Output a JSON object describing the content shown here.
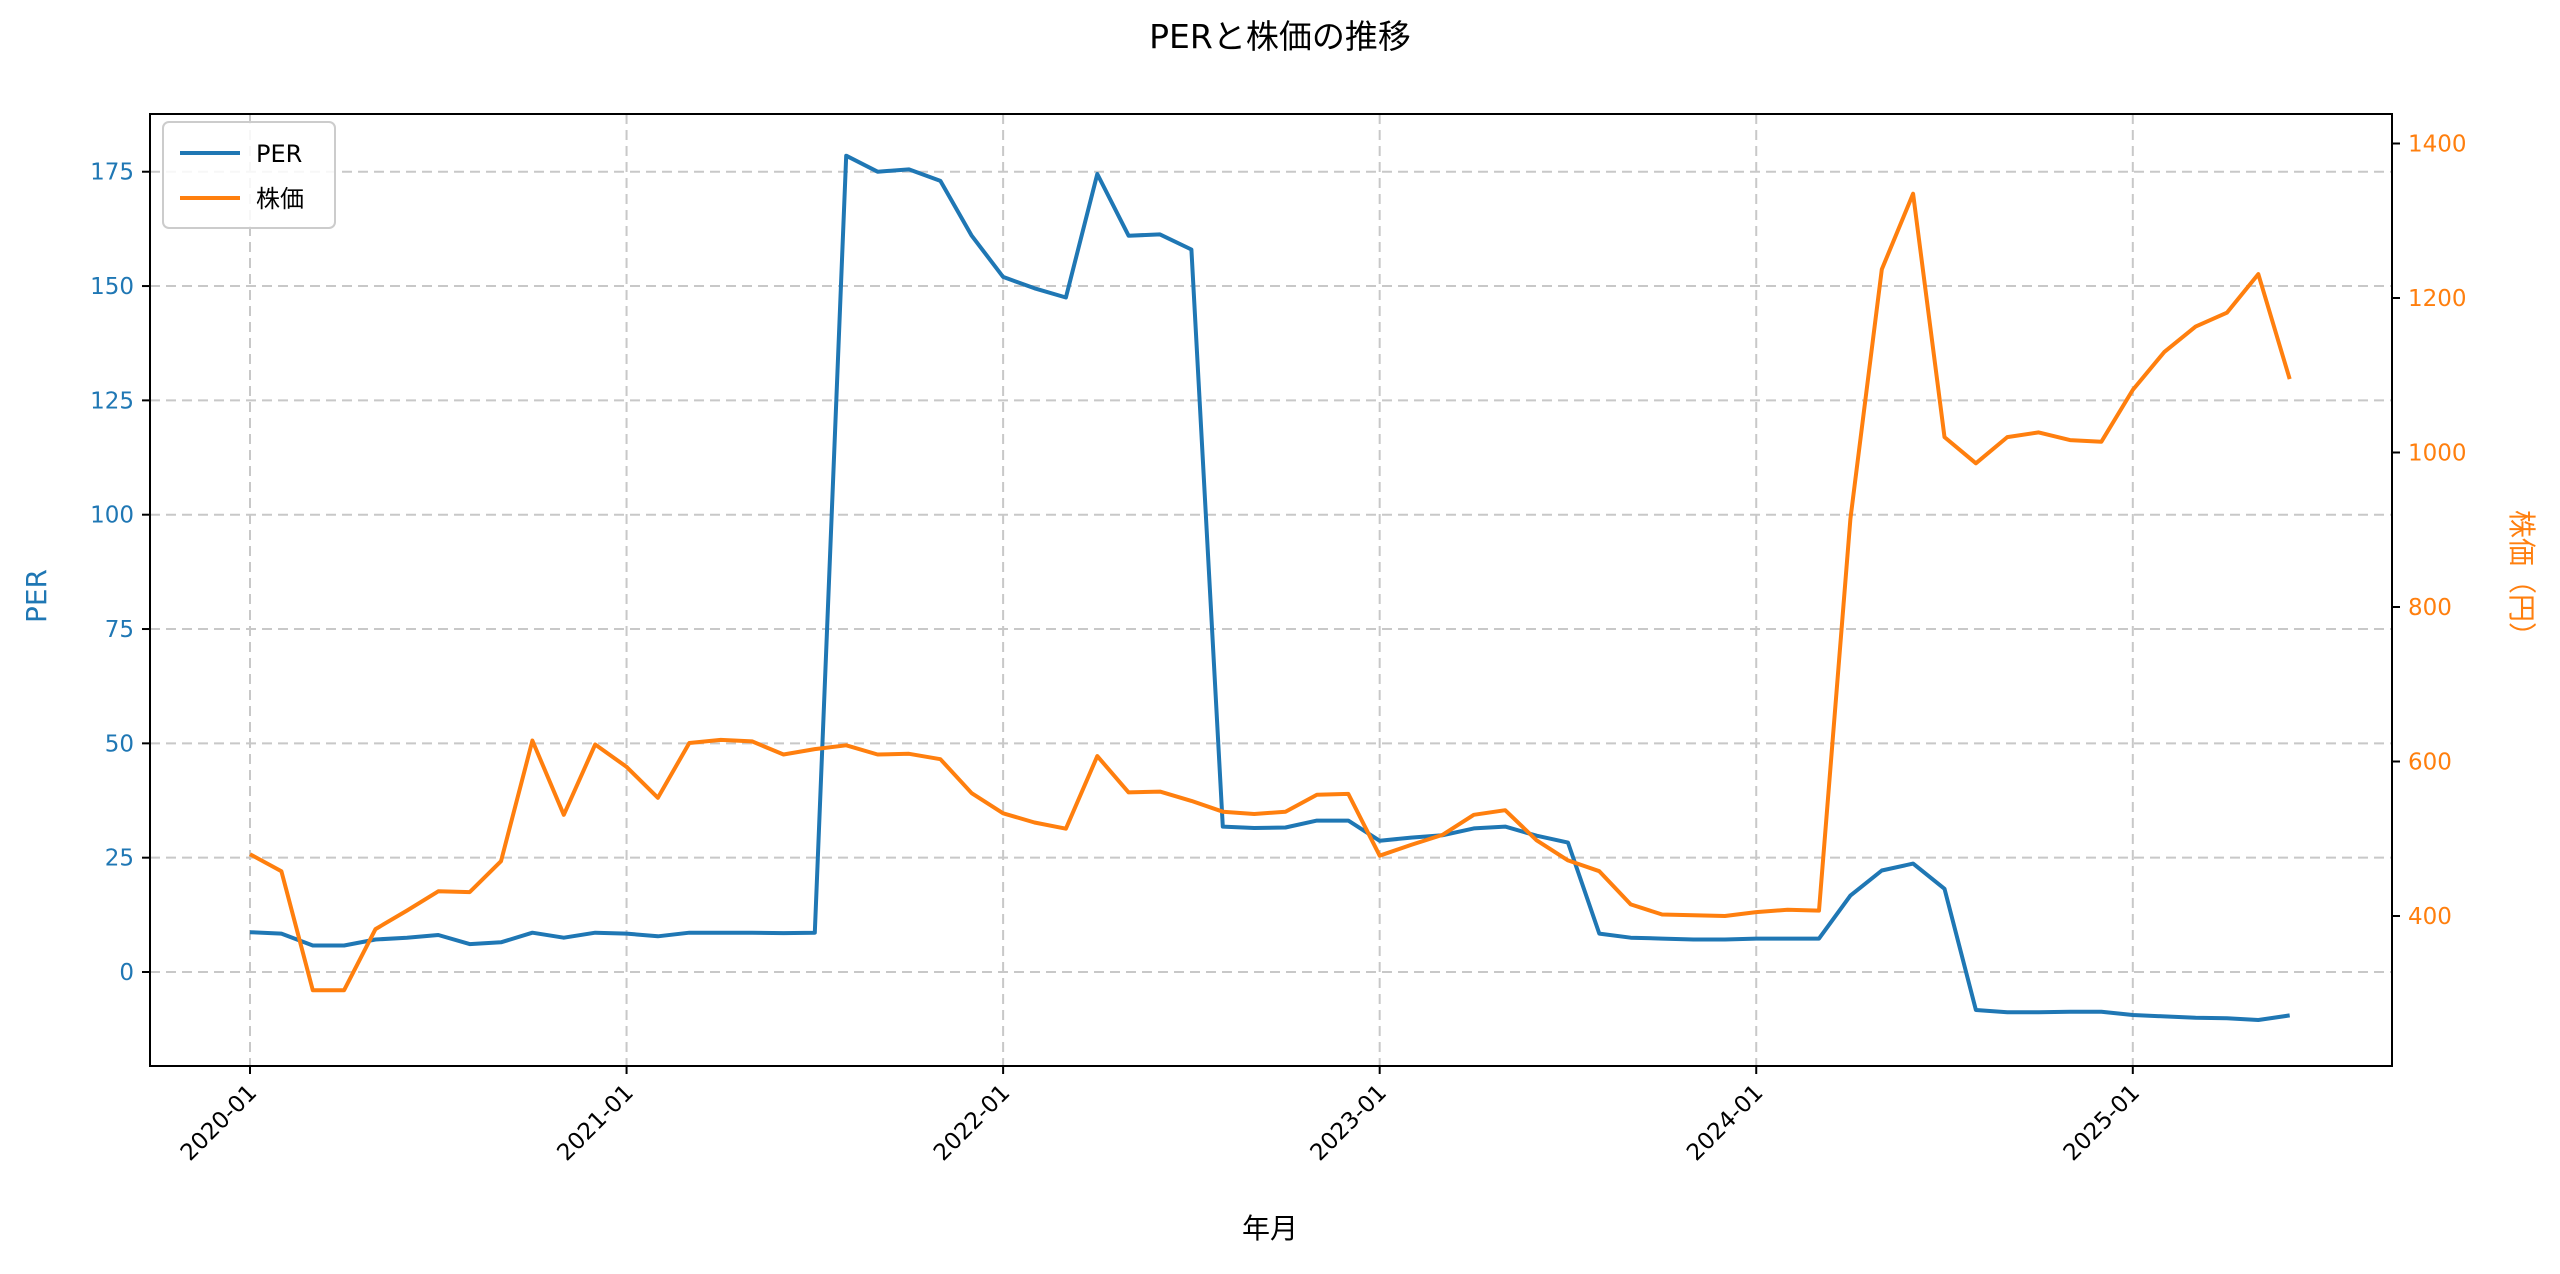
{
  "chart_data": {
    "type": "line",
    "title": "PERと株価の推移",
    "xlabel": "年月",
    "ylabel_left": "PER",
    "ylabel_right": "株価（円）",
    "x_start": "2020-01",
    "x_tick_labels": [
      "2020-01",
      "2021-01",
      "2022-01",
      "2023-01",
      "2024-01",
      "2025-01"
    ],
    "y_left_ticks": [
      0,
      25,
      50,
      75,
      100,
      125,
      150,
      175
    ],
    "y_left_range": [
      -20.5,
      187.5
    ],
    "y_right_ticks": [
      400,
      600,
      800,
      1000,
      1200,
      1400
    ],
    "y_right_range": [
      205,
      1455
    ],
    "grid": true,
    "legend_placement": "top-left",
    "series": [
      {
        "name": "PER",
        "axis": "left",
        "color": "#1f77b4",
        "values": [
          8.7,
          8.4,
          5.8,
          5.8,
          7.1,
          7.5,
          8.1,
          6.1,
          6.5,
          8.6,
          7.5,
          8.6,
          8.4,
          7.8,
          8.6,
          8.6,
          8.6,
          8.5,
          8.6,
          178.5,
          175,
          175.5,
          173,
          161,
          152,
          149.5,
          147.5,
          174.5,
          161,
          161.3,
          158,
          31.8,
          31.5,
          31.6,
          33.1,
          33.1,
          28.7,
          29.4,
          29.9,
          31.4,
          31.8,
          29.8,
          28.3,
          8.4,
          7.5,
          7.3,
          7.1,
          7.1,
          7.3,
          7.3,
          7.3,
          16.7,
          22.2,
          23.7,
          18.2,
          -8.3,
          -8.8,
          -8.8,
          -8.7,
          -8.7,
          -9.4,
          -9.7,
          -10,
          -10.1,
          -10.5,
          -9.5
        ]
      },
      {
        "name": "株価",
        "axis": "right",
        "color": "#ff7f0e",
        "values": [
          480,
          458,
          304,
          304,
          383,
          407,
          432,
          431,
          471,
          627,
          531,
          622,
          593,
          553,
          624,
          628,
          626,
          609,
          616,
          621,
          609,
          610,
          603,
          559,
          533,
          521,
          513,
          607,
          560,
          561,
          549,
          535,
          532,
          535,
          557,
          558,
          478,
          492,
          505,
          531,
          537,
          498,
          472,
          458,
          415,
          402,
          401,
          400,
          405,
          408,
          407,
          914,
          1237,
          1335,
          1020,
          986,
          1020,
          1026,
          1016,
          1014,
          1081,
          1130,
          1163,
          1181,
          1231,
          1095
        ]
      }
    ]
  }
}
